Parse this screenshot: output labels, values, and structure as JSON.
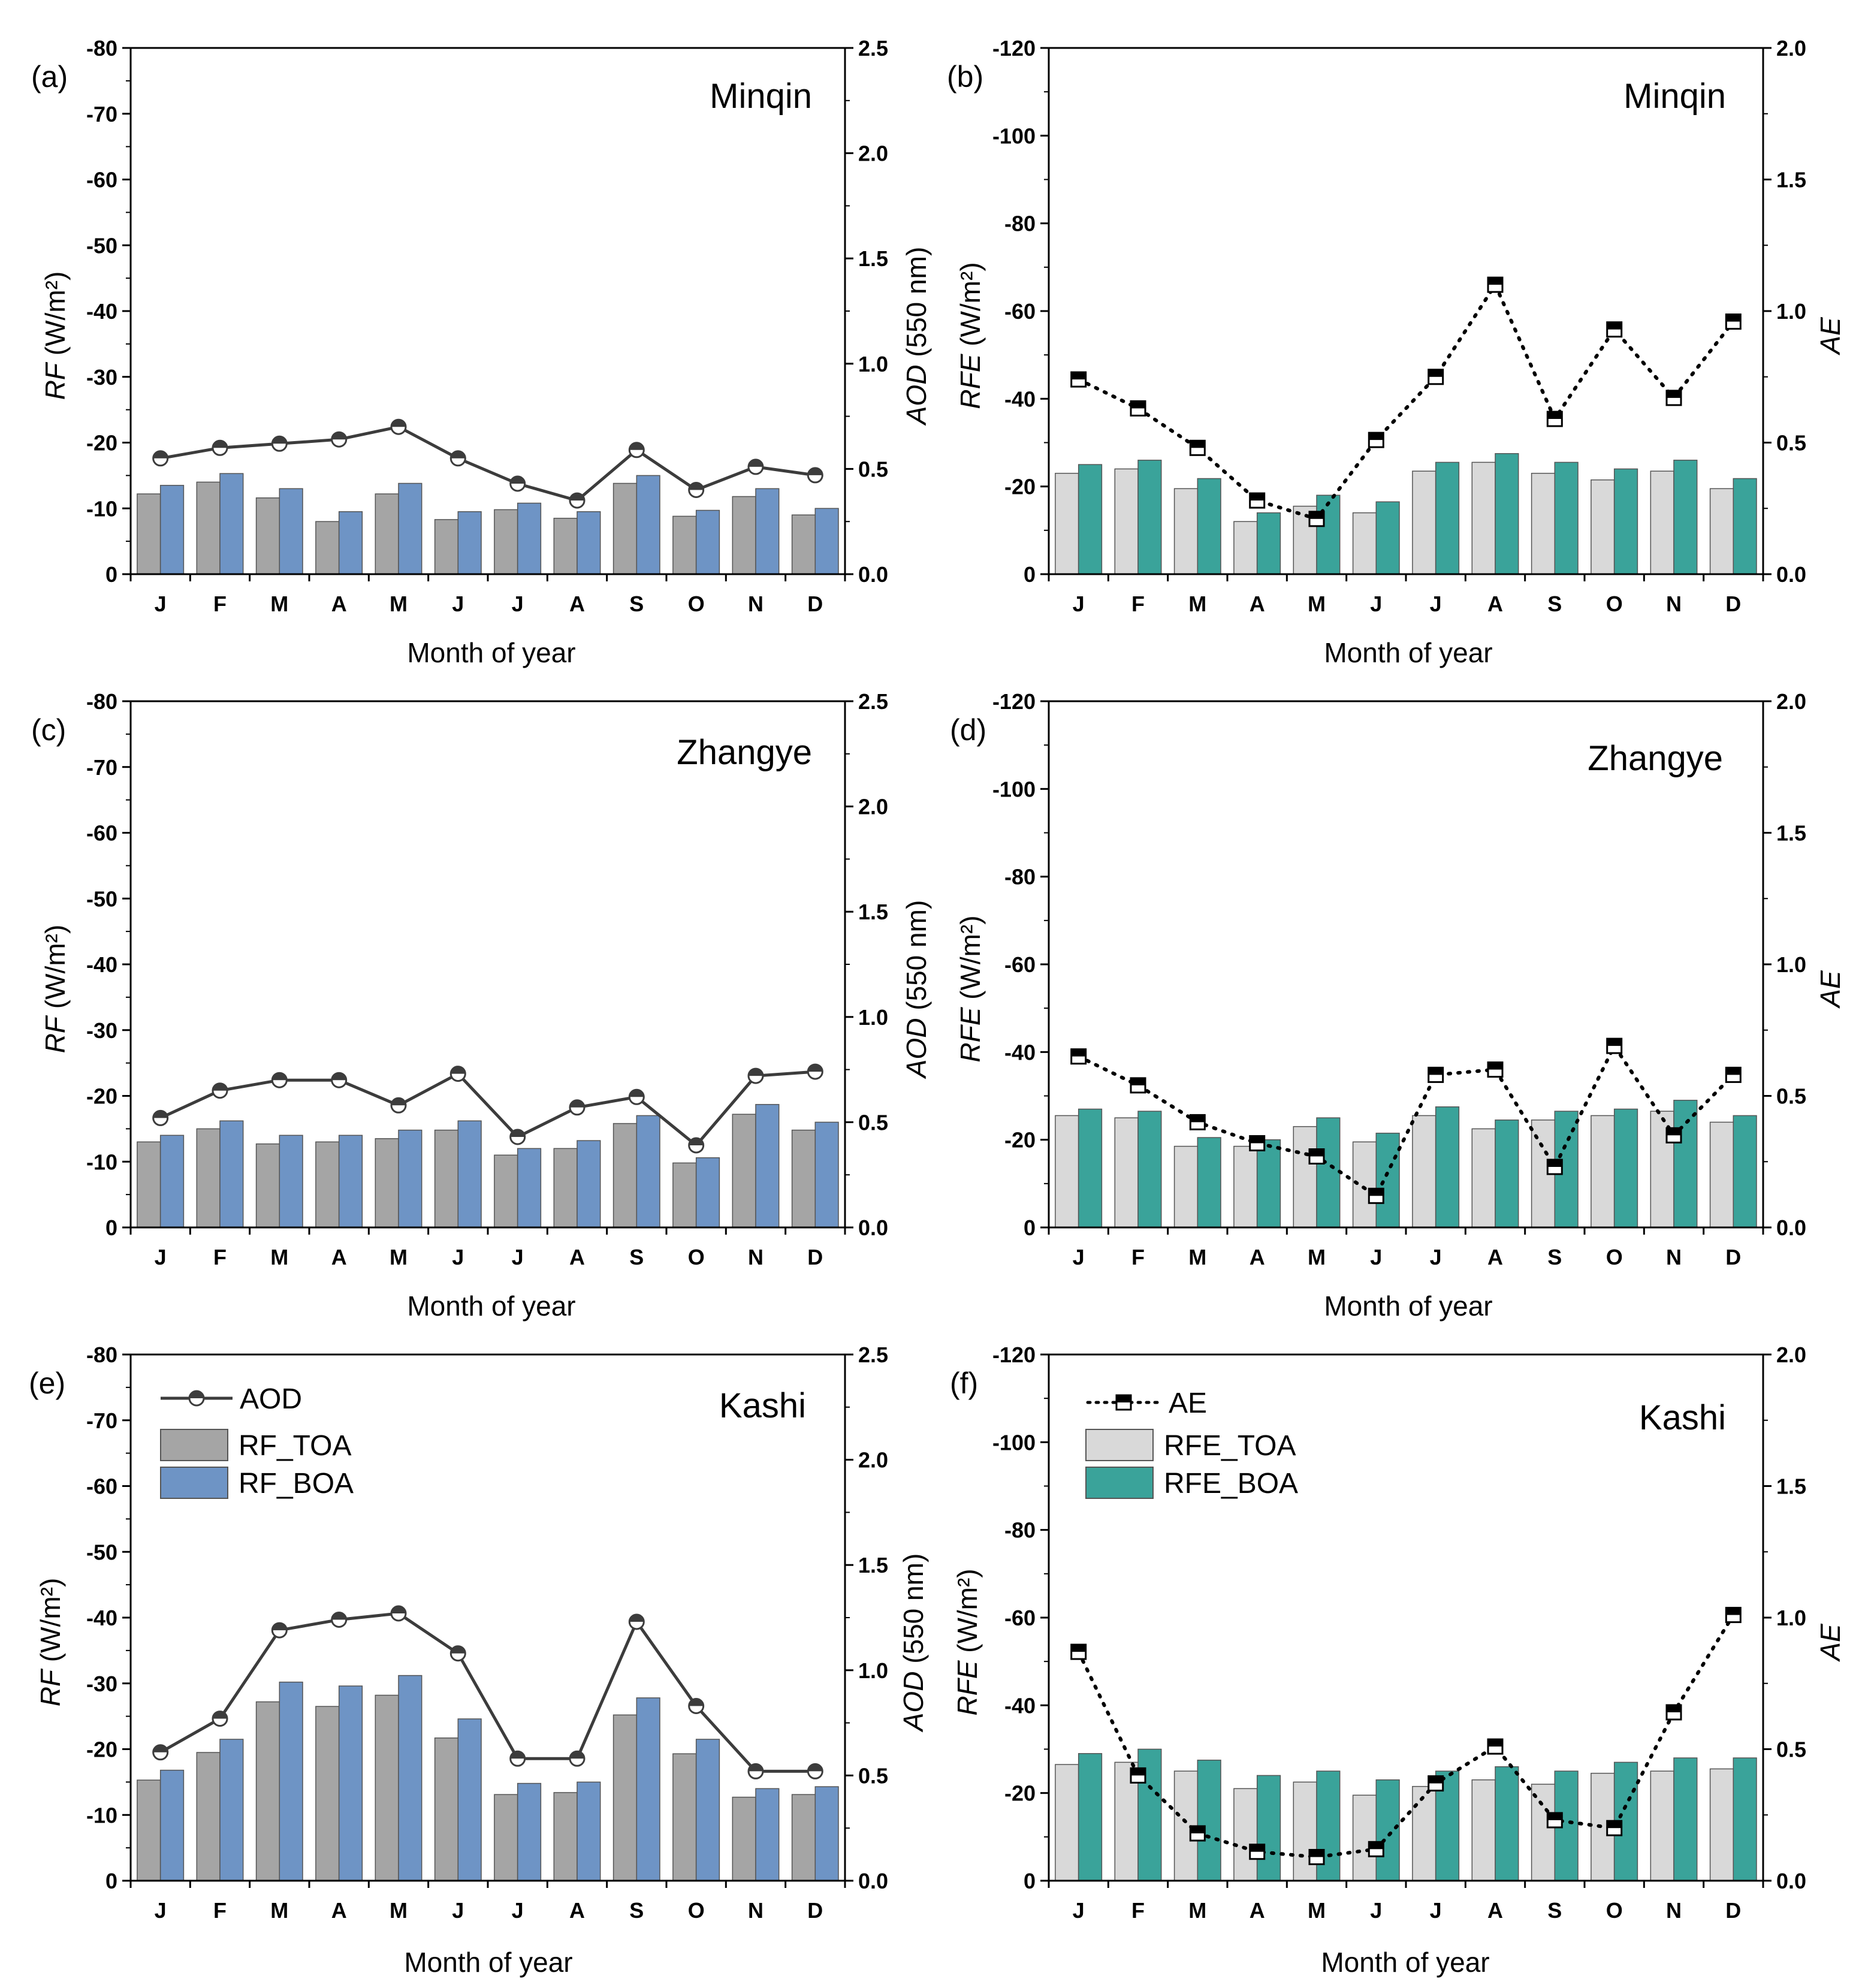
{
  "figure": {
    "xlabel": "Month of year",
    "months": [
      "J",
      "F",
      "M",
      "A",
      "M",
      "J",
      "J",
      "A",
      "S",
      "O",
      "N",
      "D"
    ]
  },
  "legend_left": {
    "line": "AOD",
    "bar1": "RF_TOA",
    "bar2": "RF_BOA"
  },
  "legend_right": {
    "line": "AE",
    "bar1": "RFE_TOA",
    "bar2": "RFE_BOA"
  },
  "colors": {
    "rf_toa": "#a5a5a5",
    "rf_boa": "#6e94c5",
    "rfe_toa": "#d9d9d9",
    "rfe_boa": "#3aa39a",
    "aod_line": "#3c3c3c",
    "ae_line": "#000000"
  },
  "chart_data": [
    {
      "id": "a",
      "panel_label": "(a)",
      "site": "Minqin",
      "type": "bar+line",
      "ylabel_italic": "RF",
      "ylabel_unit": "(W/m²)",
      "y2label_italic": "AOD",
      "y2label_unit": "(550 nm)",
      "ylim": [
        0,
        -80
      ],
      "yticks": [
        "0",
        "-10",
        "-20",
        "-30",
        "-40",
        "-50",
        "-60",
        "-70",
        "-80"
      ],
      "y2lim": [
        0,
        2.5
      ],
      "y2ticks": [
        "0.0",
        "0.5",
        "1.0",
        "1.5",
        "2.0",
        "2.5"
      ],
      "categories": [
        "J",
        "F",
        "M",
        "A",
        "M",
        "J",
        "J",
        "A",
        "S",
        "O",
        "N",
        "D"
      ],
      "series": [
        {
          "name": "RF_TOA",
          "kind": "bar",
          "values": [
            -12.2,
            -14.0,
            -11.6,
            -8.0,
            -12.2,
            -8.3,
            -9.8,
            -8.5,
            -13.8,
            -8.8,
            -11.8,
            -9.0
          ]
        },
        {
          "name": "RF_BOA",
          "kind": "bar",
          "values": [
            -13.5,
            -15.3,
            -13.0,
            -9.5,
            -13.8,
            -9.5,
            -10.8,
            -9.5,
            -15.0,
            -9.7,
            -13.0,
            -10.0
          ]
        },
        {
          "name": "AOD",
          "kind": "line",
          "values": [
            0.55,
            0.6,
            0.62,
            0.64,
            0.7,
            0.55,
            0.43,
            0.35,
            0.59,
            0.4,
            0.51,
            0.47
          ]
        }
      ]
    },
    {
      "id": "b",
      "panel_label": "(b)",
      "site": "Minqin",
      "type": "bar+line",
      "ylabel_italic": "RFE",
      "ylabel_unit": "(W/m²)",
      "y2label_italic": "AE",
      "y2label_unit": "",
      "ylim": [
        0,
        -120
      ],
      "yticks": [
        "0",
        "-20",
        "-40",
        "-60",
        "-80",
        "-100",
        "-120"
      ],
      "y2lim": [
        0,
        2.0
      ],
      "y2ticks": [
        "0.0",
        "0.5",
        "1.0",
        "1.5",
        "2.0"
      ],
      "categories": [
        "J",
        "F",
        "M",
        "A",
        "M",
        "J",
        "J",
        "A",
        "S",
        "O",
        "N",
        "D"
      ],
      "series": [
        {
          "name": "RFE_TOA",
          "kind": "bar",
          "values": [
            -23.0,
            -24.0,
            -19.5,
            -12.0,
            -15.5,
            -14.0,
            -23.5,
            -25.5,
            -23.0,
            -21.5,
            -23.5,
            -19.5
          ]
        },
        {
          "name": "RFE_BOA",
          "kind": "bar",
          "values": [
            -25.0,
            -26.0,
            -21.8,
            -14.0,
            -18.0,
            -16.5,
            -25.5,
            -27.5,
            -25.5,
            -24.0,
            -26.0,
            -21.8
          ]
        },
        {
          "name": "AE",
          "kind": "line",
          "values": [
            0.74,
            0.63,
            0.48,
            0.28,
            0.21,
            0.51,
            0.75,
            1.1,
            0.59,
            0.93,
            0.67,
            0.96
          ]
        }
      ]
    },
    {
      "id": "c",
      "panel_label": "(c)",
      "site": "Zhangye",
      "type": "bar+line",
      "ylabel_italic": "RF",
      "ylabel_unit": "(W/m²)",
      "y2label_italic": "AOD",
      "y2label_unit": "(550 nm)",
      "ylim": [
        0,
        -80
      ],
      "yticks": [
        "0",
        "-10",
        "-20",
        "-30",
        "-40",
        "-50",
        "-60",
        "-70",
        "-80"
      ],
      "y2lim": [
        0,
        2.5
      ],
      "y2ticks": [
        "0.0",
        "0.5",
        "1.0",
        "1.5",
        "2.0",
        "2.5"
      ],
      "categories": [
        "J",
        "F",
        "M",
        "A",
        "M",
        "J",
        "J",
        "A",
        "S",
        "O",
        "N",
        "D"
      ],
      "series": [
        {
          "name": "RF_TOA",
          "kind": "bar",
          "values": [
            -13.0,
            -15.0,
            -12.7,
            -13.0,
            -13.5,
            -14.8,
            -11.0,
            -12.0,
            -15.8,
            -9.8,
            -17.2,
            -14.8
          ]
        },
        {
          "name": "RF_BOA",
          "kind": "bar",
          "values": [
            -14.0,
            -16.2,
            -14.0,
            -14.0,
            -14.8,
            -16.2,
            -12.0,
            -13.2,
            -17.0,
            -10.6,
            -18.7,
            -16.0
          ]
        },
        {
          "name": "AOD",
          "kind": "line",
          "values": [
            0.52,
            0.65,
            0.7,
            0.7,
            0.58,
            0.73,
            0.43,
            0.57,
            0.62,
            0.39,
            0.72,
            0.74
          ]
        }
      ]
    },
    {
      "id": "d",
      "panel_label": "(d)",
      "site": "Zhangye",
      "type": "bar+line",
      "ylabel_italic": "RFE",
      "ylabel_unit": "(W/m²)",
      "y2label_italic": "AE",
      "y2label_unit": "",
      "ylim": [
        0,
        -120
      ],
      "yticks": [
        "0",
        "-20",
        "-40",
        "-60",
        "-80",
        "-100",
        "-120"
      ],
      "y2lim": [
        0,
        2.0
      ],
      "y2ticks": [
        "0.0",
        "0.5",
        "1.0",
        "1.5",
        "2.0"
      ],
      "categories": [
        "J",
        "F",
        "M",
        "A",
        "M",
        "J",
        "J",
        "A",
        "S",
        "O",
        "N",
        "D"
      ],
      "series": [
        {
          "name": "RFE_TOA",
          "kind": "bar",
          "values": [
            -25.5,
            -25.0,
            -18.5,
            -18.5,
            -23.0,
            -19.5,
            -25.5,
            -22.5,
            -24.5,
            -25.5,
            -26.5,
            -24.0
          ]
        },
        {
          "name": "RFE_BOA",
          "kind": "bar",
          "values": [
            -27.0,
            -26.5,
            -20.5,
            -20.0,
            -25.0,
            -21.5,
            -27.5,
            -24.5,
            -26.5,
            -27.0,
            -29.0,
            -25.5
          ]
        },
        {
          "name": "AE",
          "kind": "line",
          "values": [
            0.65,
            0.54,
            0.4,
            0.32,
            0.27,
            0.12,
            0.58,
            0.6,
            0.23,
            0.69,
            0.35,
            0.58
          ]
        }
      ]
    },
    {
      "id": "e",
      "panel_label": "(e)",
      "site": "Kashi",
      "type": "bar+line",
      "ylabel_italic": "RF",
      "ylabel_unit": "(W/m²)",
      "y2label_italic": "AOD",
      "y2label_unit": "(550 nm)",
      "ylim": [
        0,
        -80
      ],
      "yticks": [
        "0",
        "-10",
        "-20",
        "-30",
        "-40",
        "-50",
        "-60",
        "-70",
        "-80"
      ],
      "y2lim": [
        0,
        2.5
      ],
      "y2ticks": [
        "0.0",
        "0.5",
        "1.0",
        "1.5",
        "2.0",
        "2.5"
      ],
      "categories": [
        "J",
        "F",
        "M",
        "A",
        "M",
        "J",
        "J",
        "A",
        "S",
        "O",
        "N",
        "D"
      ],
      "legend": true,
      "series": [
        {
          "name": "RF_TOA",
          "kind": "bar",
          "values": [
            -15.3,
            -19.5,
            -27.2,
            -26.5,
            -28.2,
            -21.7,
            -13.1,
            -13.4,
            -25.2,
            -19.3,
            -12.7,
            -13.1
          ]
        },
        {
          "name": "RF_BOA",
          "kind": "bar",
          "values": [
            -16.8,
            -21.5,
            -30.2,
            -29.6,
            -31.2,
            -24.6,
            -14.8,
            -15.0,
            -27.8,
            -21.5,
            -14.0,
            -14.3
          ]
        },
        {
          "name": "AOD",
          "kind": "line",
          "values": [
            0.61,
            0.77,
            1.19,
            1.24,
            1.27,
            1.08,
            0.58,
            0.58,
            1.23,
            0.83,
            0.52,
            0.52
          ]
        }
      ]
    },
    {
      "id": "f",
      "panel_label": "(f)",
      "site": "Kashi",
      "type": "bar+line",
      "ylabel_italic": "RFE",
      "ylabel_unit": "(W/m²)",
      "y2label_italic": "AE",
      "y2label_unit": "",
      "ylim": [
        0,
        -120
      ],
      "yticks": [
        "0",
        "-20",
        "-40",
        "-60",
        "-80",
        "-100",
        "-120"
      ],
      "y2lim": [
        0,
        2.0
      ],
      "y2ticks": [
        "0.0",
        "0.5",
        "1.0",
        "1.5",
        "2.0"
      ],
      "categories": [
        "J",
        "F",
        "M",
        "A",
        "M",
        "J",
        "J",
        "A",
        "S",
        "O",
        "N",
        "D"
      ],
      "legend": true,
      "series": [
        {
          "name": "RFE_TOA",
          "kind": "bar",
          "values": [
            -26.5,
            -27.0,
            -25.0,
            -21.0,
            -22.5,
            -19.5,
            -21.5,
            -23.0,
            -22.0,
            -24.5,
            -25.0,
            -25.5
          ]
        },
        {
          "name": "RFE_BOA",
          "kind": "bar",
          "values": [
            -29.0,
            -30.0,
            -27.5,
            -24.0,
            -25.0,
            -23.0,
            -25.0,
            -26.0,
            -25.0,
            -27.0,
            -28.0,
            -28.0
          ]
        },
        {
          "name": "AE",
          "kind": "line",
          "values": [
            0.87,
            0.4,
            0.18,
            0.11,
            0.09,
            0.12,
            0.37,
            0.51,
            0.23,
            0.2,
            0.64,
            1.01
          ]
        }
      ]
    }
  ]
}
